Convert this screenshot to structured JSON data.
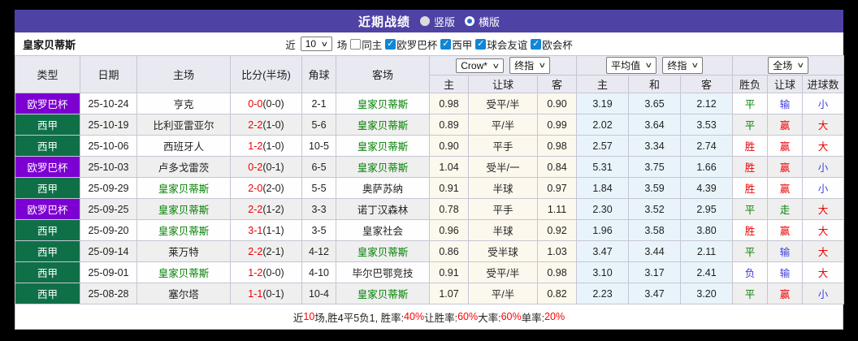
{
  "title_bar": {
    "title": "近期战绩",
    "radios": [
      {
        "label": "竖版",
        "selected": false
      },
      {
        "label": "横版",
        "selected": true
      }
    ]
  },
  "filter_bar": {
    "team_name": "皇家贝蒂斯",
    "near_label": "近",
    "matches_count": "10",
    "matches_label": "场",
    "same_home_label": "同主",
    "competitions": [
      "欧罗巴杯",
      "西甲",
      "球会友谊",
      "欧会杯"
    ]
  },
  "table": {
    "columns_left": [
      "类型",
      "日期",
      "主场",
      "比分(半场)",
      "角球",
      "客场"
    ],
    "dropdowns": [
      "Crow*",
      "终指",
      "平均值",
      "终指",
      "全场"
    ],
    "sub_headers": [
      "主",
      "让球",
      "客",
      "主",
      "和",
      "客",
      "胜负",
      "让球",
      "进球数"
    ],
    "rows": [
      {
        "type": "欧罗巴杯",
        "type_color": "purple",
        "date": "25-10-24",
        "home": "亨克",
        "home_self": false,
        "score": "0-0",
        "half": "(0-0)",
        "corner": "2-1",
        "away": "皇家贝蒂斯",
        "away_self": true,
        "asian": [
          "0.98",
          "受平/半",
          "0.90"
        ],
        "euro": [
          "3.19",
          "3.65",
          "2.12"
        ],
        "result": {
          "t": "平",
          "c": "green"
        },
        "let_result": {
          "t": "输",
          "c": "blue"
        },
        "goals": {
          "t": "小",
          "c": "blue"
        }
      },
      {
        "type": "西甲",
        "type_color": "green",
        "date": "25-10-19",
        "home": "比利亚雷亚尔",
        "home_self": false,
        "score": "2-2",
        "half": "(1-0)",
        "corner": "5-6",
        "away": "皇家贝蒂斯",
        "away_self": true,
        "asian": [
          "0.89",
          "平/半",
          "0.99"
        ],
        "euro": [
          "2.02",
          "3.64",
          "3.53"
        ],
        "result": {
          "t": "平",
          "c": "green"
        },
        "let_result": {
          "t": "赢",
          "c": "red"
        },
        "goals": {
          "t": "大",
          "c": "red"
        }
      },
      {
        "type": "西甲",
        "type_color": "green",
        "date": "25-10-06",
        "home": "西班牙人",
        "home_self": false,
        "score": "1-2",
        "half": "(1-0)",
        "corner": "10-5",
        "away": "皇家贝蒂斯",
        "away_self": true,
        "asian": [
          "0.90",
          "平手",
          "0.98"
        ],
        "euro": [
          "2.57",
          "3.34",
          "2.74"
        ],
        "result": {
          "t": "胜",
          "c": "red"
        },
        "let_result": {
          "t": "赢",
          "c": "red"
        },
        "goals": {
          "t": "大",
          "c": "red"
        }
      },
      {
        "type": "欧罗巴杯",
        "type_color": "purple",
        "date": "25-10-03",
        "home": "卢多戈雷茨",
        "home_self": false,
        "score": "0-2",
        "half": "(0-1)",
        "corner": "6-5",
        "away": "皇家贝蒂斯",
        "away_self": true,
        "asian": [
          "1.04",
          "受半/一",
          "0.84"
        ],
        "euro": [
          "5.31",
          "3.75",
          "1.66"
        ],
        "result": {
          "t": "胜",
          "c": "red"
        },
        "let_result": {
          "t": "赢",
          "c": "red"
        },
        "goals": {
          "t": "小",
          "c": "blue"
        }
      },
      {
        "type": "西甲",
        "type_color": "green",
        "date": "25-09-29",
        "home": "皇家贝蒂斯",
        "home_self": true,
        "score": "2-0",
        "half": "(2-0)",
        "corner": "5-5",
        "away": "奥萨苏纳",
        "away_self": false,
        "asian": [
          "0.91",
          "半球",
          "0.97"
        ],
        "euro": [
          "1.84",
          "3.59",
          "4.39"
        ],
        "result": {
          "t": "胜",
          "c": "red"
        },
        "let_result": {
          "t": "赢",
          "c": "red"
        },
        "goals": {
          "t": "小",
          "c": "blue"
        }
      },
      {
        "type": "欧罗巴杯",
        "type_color": "purple",
        "date": "25-09-25",
        "home": "皇家贝蒂斯",
        "home_self": true,
        "score": "2-2",
        "half": "(1-2)",
        "corner": "3-3",
        "away": "诺丁汉森林",
        "away_self": false,
        "asian": [
          "0.78",
          "平手",
          "1.11"
        ],
        "euro": [
          "2.30",
          "3.52",
          "2.95"
        ],
        "result": {
          "t": "平",
          "c": "green"
        },
        "let_result": {
          "t": "走",
          "c": "green"
        },
        "goals": {
          "t": "大",
          "c": "red"
        }
      },
      {
        "type": "西甲",
        "type_color": "green",
        "date": "25-09-20",
        "home": "皇家贝蒂斯",
        "home_self": true,
        "score": "3-1",
        "half": "(1-1)",
        "corner": "3-5",
        "away": "皇家社会",
        "away_self": false,
        "asian": [
          "0.96",
          "半球",
          "0.92"
        ],
        "euro": [
          "1.96",
          "3.58",
          "3.80"
        ],
        "result": {
          "t": "胜",
          "c": "red"
        },
        "let_result": {
          "t": "赢",
          "c": "red"
        },
        "goals": {
          "t": "大",
          "c": "red"
        }
      },
      {
        "type": "西甲",
        "type_color": "green",
        "date": "25-09-14",
        "home": "莱万特",
        "home_self": false,
        "score": "2-2",
        "half": "(2-1)",
        "corner": "4-12",
        "away": "皇家贝蒂斯",
        "away_self": true,
        "asian": [
          "0.86",
          "受半球",
          "1.03"
        ],
        "euro": [
          "3.47",
          "3.44",
          "2.11"
        ],
        "result": {
          "t": "平",
          "c": "green"
        },
        "let_result": {
          "t": "输",
          "c": "blue"
        },
        "goals": {
          "t": "大",
          "c": "red"
        }
      },
      {
        "type": "西甲",
        "type_color": "green",
        "date": "25-09-01",
        "home": "皇家贝蒂斯",
        "home_self": true,
        "score": "1-2",
        "half": "(0-0)",
        "corner": "4-10",
        "away": "毕尔巴鄂竞技",
        "away_self": false,
        "asian": [
          "0.91",
          "受平/半",
          "0.98"
        ],
        "euro": [
          "3.10",
          "3.17",
          "2.41"
        ],
        "result": {
          "t": "负",
          "c": "blue"
        },
        "let_result": {
          "t": "输",
          "c": "blue"
        },
        "goals": {
          "t": "大",
          "c": "red"
        }
      },
      {
        "type": "西甲",
        "type_color": "green",
        "date": "25-08-28",
        "home": "塞尔塔",
        "home_self": false,
        "score": "1-1",
        "half": "(0-1)",
        "corner": "10-4",
        "away": "皇家贝蒂斯",
        "away_self": true,
        "asian": [
          "1.07",
          "平/半",
          "0.82"
        ],
        "euro": [
          "2.23",
          "3.47",
          "3.20"
        ],
        "result": {
          "t": "平",
          "c": "green"
        },
        "let_result": {
          "t": "赢",
          "c": "red"
        },
        "goals": {
          "t": "小",
          "c": "blue"
        }
      }
    ]
  },
  "footer": {
    "segments": [
      {
        "t": "近",
        "red": false
      },
      {
        "t": "10",
        "red": true
      },
      {
        "t": "场,胜4平5负1, 胜率:",
        "red": false
      },
      {
        "t": "40%",
        "red": true
      },
      {
        "t": " 让胜率:",
        "red": false
      },
      {
        "t": "60%",
        "red": true
      },
      {
        "t": " 大率:",
        "red": false
      },
      {
        "t": "60%",
        "red": true
      },
      {
        "t": " 单率:",
        "red": false
      },
      {
        "t": "20%",
        "red": true
      }
    ]
  },
  "colors": {
    "title_bar_purple": "#4e42a5",
    "badge_purple": "#7d00d2",
    "badge_green": "#0f7048",
    "team_highlight_green": "#008000",
    "score_red": "#ee0000",
    "loss_blue": "#3e3ee0",
    "checkbox_blue": "#0f86d7",
    "asian_odds_bg": "#fcf8ee",
    "euro_odds_bg": "#e9f4fa"
  }
}
